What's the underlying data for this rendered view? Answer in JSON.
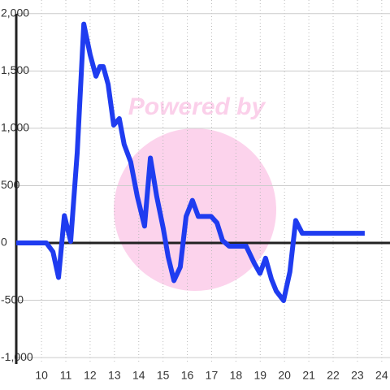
{
  "chart_data": {
    "type": "line",
    "watermark": "Powered by",
    "x": [
      8.96,
      10.2,
      10.47,
      10.7,
      10.94,
      11.2,
      11.47,
      11.74,
      12.0,
      12.24,
      12.4,
      12.54,
      12.74,
      12.97,
      13.2,
      13.4,
      13.67,
      13.94,
      14.24,
      14.48,
      14.74,
      15.01,
      15.21,
      15.45,
      15.71,
      15.95,
      16.21,
      16.45,
      16.72,
      16.98,
      17.22,
      17.45,
      17.72,
      18.42,
      18.75,
      18.99,
      19.22,
      19.46,
      19.66,
      19.96,
      20.22,
      20.46,
      20.73,
      21.0,
      23.3
    ],
    "series": [
      {
        "color": "#1f3cf0",
        "values": [
          0,
          0,
          -77,
          -301,
          238,
          14,
          790,
          1909,
          1643,
          1454,
          1538,
          1538,
          1384,
          1028,
          1084,
          860,
          706,
          406,
          147,
          741,
          406,
          126,
          -119,
          -329,
          -210,
          231,
          371,
          231,
          231,
          231,
          175,
          21,
          -28,
          -28,
          -175,
          -266,
          -133,
          -315,
          -420,
          -503,
          -252,
          196,
          84,
          84,
          84
        ]
      }
    ],
    "xlim": [
      8.96,
      24.34
    ],
    "xticks": [
      10,
      11,
      12,
      13,
      14,
      15,
      16,
      17,
      18,
      19,
      20,
      21,
      22,
      23,
      24
    ],
    "ylim": [
      -1056,
      2119
    ],
    "yticks": [
      {
        "value": -1000,
        "label": "-1,000"
      },
      -500,
      0,
      500,
      {
        "value": 1000,
        "label": "1,000"
      },
      {
        "value": 1500,
        "label": "1,500"
      },
      {
        "value": 2000,
        "label": "2,000"
      }
    ],
    "grid": true
  }
}
